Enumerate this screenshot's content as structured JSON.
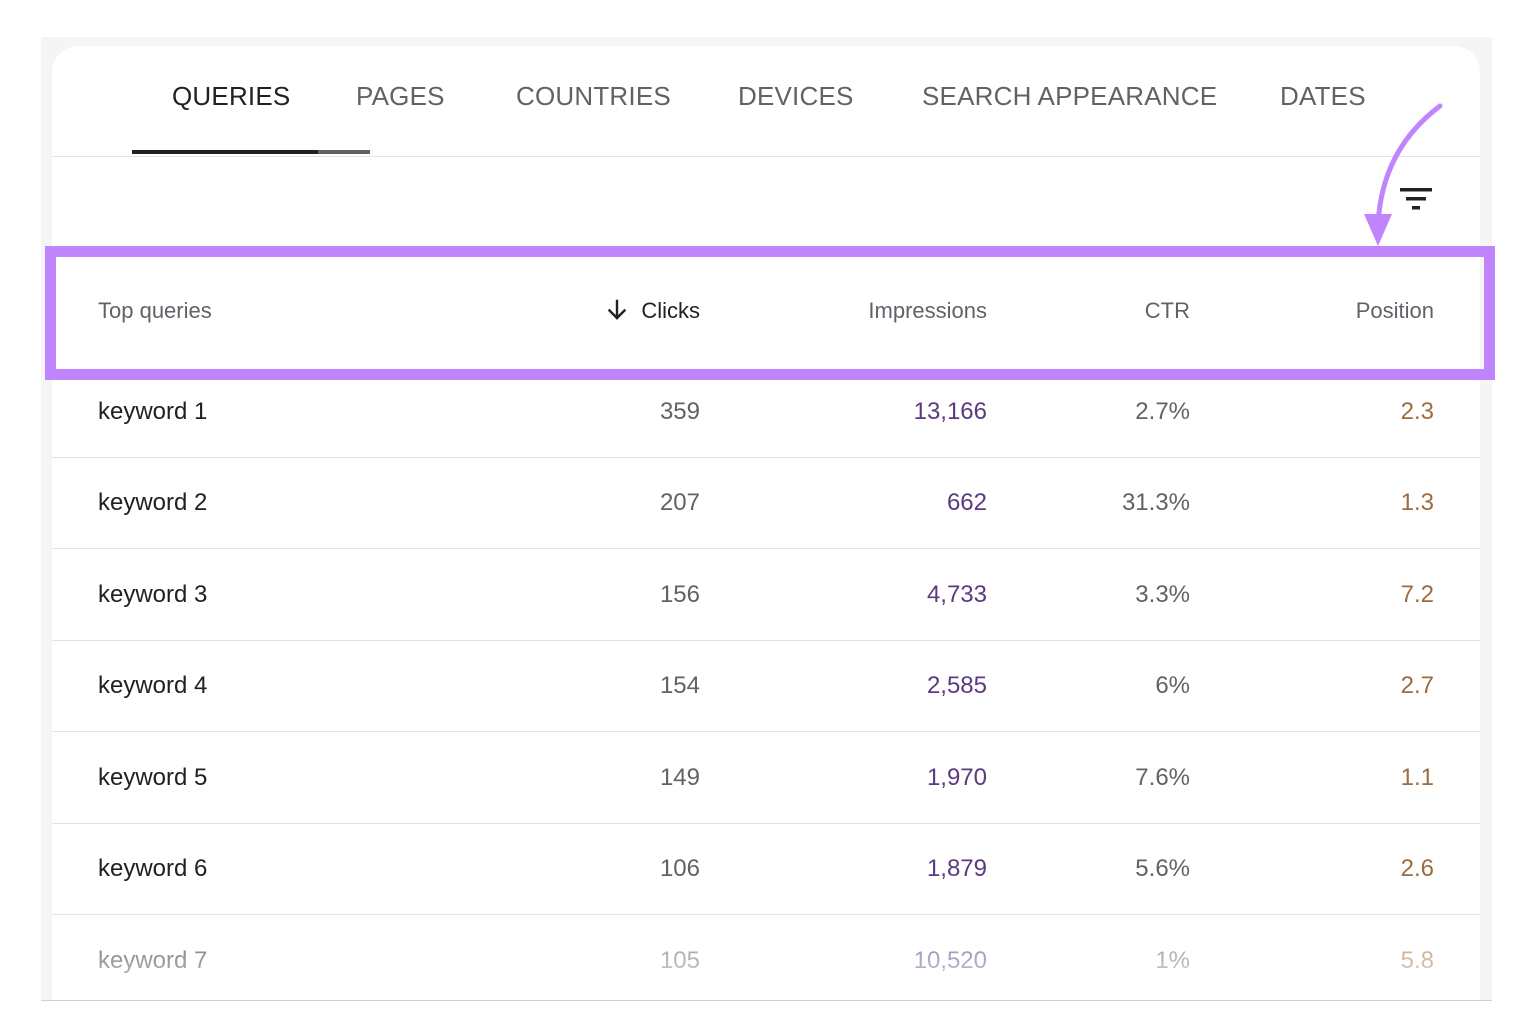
{
  "tabs": [
    {
      "label": "QUERIES",
      "active": true
    },
    {
      "label": "PAGES",
      "active": false
    },
    {
      "label": "COUNTRIES",
      "active": false
    },
    {
      "label": "DEVICES",
      "active": false
    },
    {
      "label": "SEARCH APPEARANCE",
      "active": false
    },
    {
      "label": "DATES",
      "active": false
    }
  ],
  "toolbar": {
    "filter_icon": "filter-icon"
  },
  "table": {
    "columns": {
      "query": "Top queries",
      "clicks": "Clicks",
      "impressions": "Impressions",
      "ctr": "CTR",
      "position": "Position"
    },
    "sort": {
      "column": "clicks",
      "direction": "descending",
      "icon": "arrow-down-icon"
    },
    "rows": [
      {
        "query": "keyword 1",
        "clicks": "359",
        "impressions": "13,166",
        "ctr": "2.7%",
        "position": "2.3"
      },
      {
        "query": "keyword 2",
        "clicks": "207",
        "impressions": "662",
        "ctr": "31.3%",
        "position": "1.3"
      },
      {
        "query": "keyword 3",
        "clicks": "156",
        "impressions": "4,733",
        "ctr": "3.3%",
        "position": "7.2"
      },
      {
        "query": "keyword 4",
        "clicks": "154",
        "impressions": "2,585",
        "ctr": "6%",
        "position": "2.7"
      },
      {
        "query": "keyword 5",
        "clicks": "149",
        "impressions": "1,970",
        "ctr": "7.6%",
        "position": "1.1"
      },
      {
        "query": "keyword 6",
        "clicks": "106",
        "impressions": "1,879",
        "ctr": "5.6%",
        "position": "2.6"
      },
      {
        "query": "keyword 7",
        "clicks": "105",
        "impressions": "10,520",
        "ctr": "1%",
        "position": "5.8"
      }
    ]
  },
  "colors": {
    "highlight": "#c084fc",
    "impressions_text": "#5b3a7f",
    "position_text": "#9c6b40",
    "tab_active": "#202124",
    "tab_inactive": "#5f6368"
  }
}
